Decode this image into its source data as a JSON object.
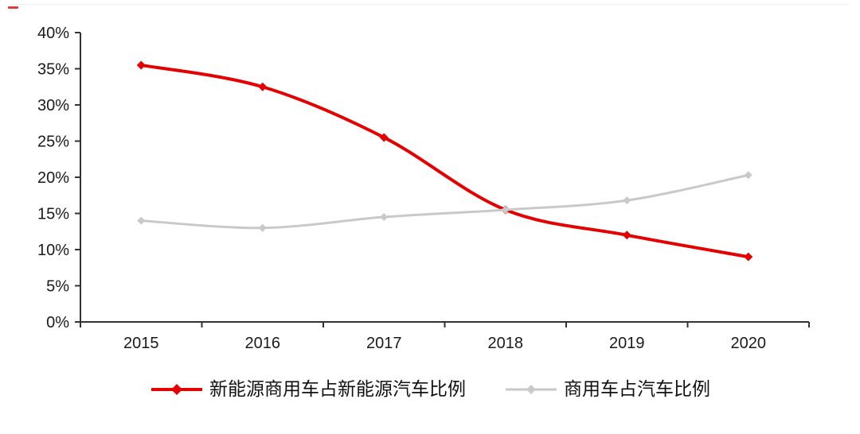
{
  "decor": {
    "top_border_color": "#f2efef",
    "top_left_dash_color": "#e23b3b"
  },
  "chart_data": {
    "type": "line",
    "title": "",
    "categories": [
      "2015",
      "2016",
      "2017",
      "2018",
      "2019",
      "2020"
    ],
    "series": [
      {
        "name": "新能源商用车占新能源汽车比例",
        "color": "#e40000",
        "marker": "diamond",
        "line_width": 4,
        "marker_size": 5.5,
        "values": [
          35.5,
          32.5,
          25.5,
          15.5,
          12.0,
          9.0
        ]
      },
      {
        "name": "商用车占汽车比例",
        "color": "#c9c9c9",
        "marker": "diamond",
        "line_width": 3,
        "marker_size": 5,
        "values": [
          14.0,
          13.0,
          14.5,
          15.5,
          16.8,
          20.3
        ]
      }
    ],
    "xlabel": "",
    "ylabel": "",
    "ylim": [
      0,
      40
    ],
    "y_tick_step": 5,
    "y_tick_labels": [
      "0%",
      "5%",
      "10%",
      "15%",
      "20%",
      "25%",
      "30%",
      "35%",
      "40%"
    ],
    "grid": false,
    "legend_position": "bottom",
    "axis_color": "#333333",
    "label_color": "#1a1a1a"
  }
}
